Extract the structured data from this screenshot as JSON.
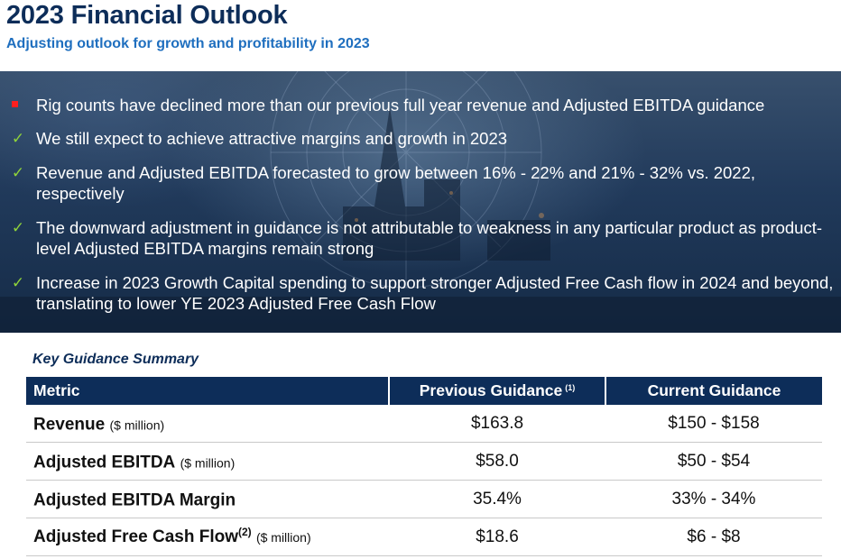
{
  "header": {
    "title": "2023 Financial Outlook",
    "subtitle": "Adjusting outlook for growth and profitability in 2023"
  },
  "bullets": [
    {
      "marker": "red-square-icon",
      "text": "Rig counts have declined more than our previous full year revenue and Adjusted EBITDA guidance"
    },
    {
      "marker": "check-icon",
      "text": "We still expect to achieve attractive margins and growth in 2023"
    },
    {
      "marker": "check-icon",
      "text": "Revenue and Adjusted EBITDA forecasted to grow between 16% - 22% and 21% - 32% vs. 2022, respectively"
    },
    {
      "marker": "check-icon",
      "text": "The downward adjustment in guidance is not attributable to weakness in any particular product as product-level Adjusted EBITDA margins remain strong"
    },
    {
      "marker": "check-icon",
      "text": "Increase in 2023 Growth Capital spending to support stronger Adjusted Free Cash flow in 2024 and beyond, translating to lower YE 2023 Adjusted Free Cash Flow"
    }
  ],
  "check_symbol": "✓",
  "colors": {
    "navy": "#0d2d59",
    "accent_blue": "#1f6fbf",
    "check_green": "#8fd33a",
    "marker_red": "#ff1f1f"
  },
  "summary": {
    "label": "Key Guidance Summary",
    "columns": {
      "metric": "Metric",
      "previous": "Previous Guidance",
      "previous_note": "(1)",
      "current": "Current Guidance"
    },
    "rows": [
      {
        "metric": "Revenue",
        "note": "",
        "unit": "($ million)",
        "previous": "$163.8",
        "current": "$150 - $158"
      },
      {
        "metric": "Adjusted EBITDA",
        "note": "",
        "unit": "($ million)",
        "previous": "$58.0",
        "current": "$50 - $54"
      },
      {
        "metric": "Adjusted EBITDA Margin",
        "note": "",
        "unit": "",
        "previous": "35.4%",
        "current": "33% - 34%"
      },
      {
        "metric": "Adjusted Free Cash Flow",
        "note": "(2)",
        "unit": "($ million)",
        "previous": "$18.6",
        "current": "$6 - $8"
      }
    ]
  }
}
